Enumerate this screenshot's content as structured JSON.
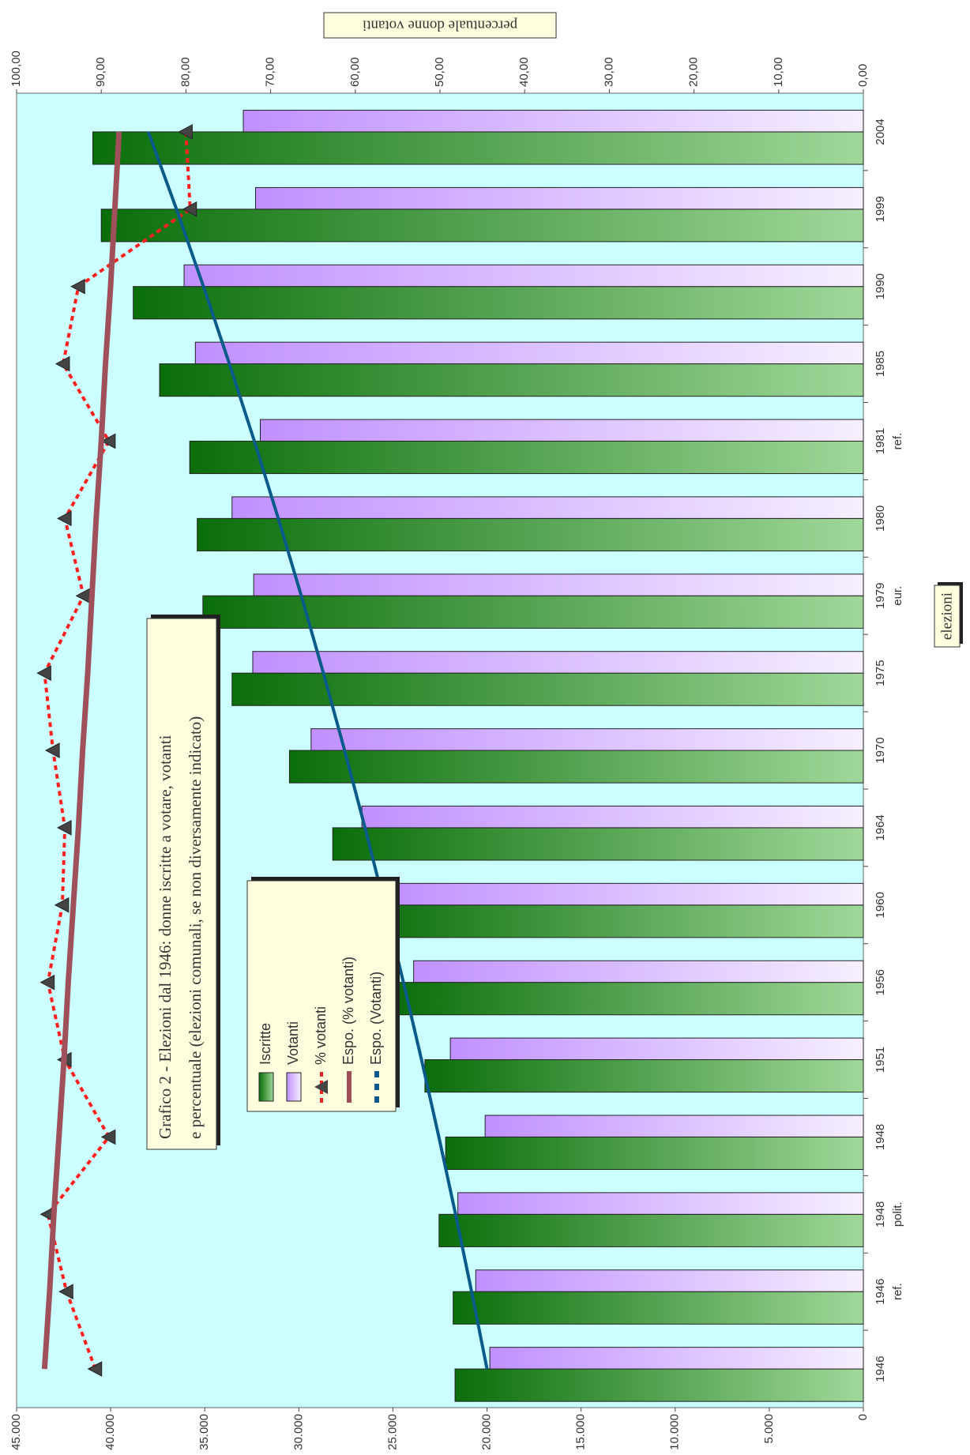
{
  "chart_data": {
    "type": "bar",
    "title": [
      "Grafico 2 - Elezioni dal 1946: donne iscritte a votare, votanti",
      "e percentuale (elezioni comunali, se non diversamente indicato)"
    ],
    "x_title": "elezioni",
    "y2_title": "percentuale donne votanti",
    "categories": [
      "1946",
      "1946",
      "1948",
      "1948",
      "1951",
      "1956",
      "1960",
      "1964",
      "1970",
      "1975",
      "1979",
      "1980",
      "1981",
      "1985",
      "1990",
      "1999",
      "2004"
    ],
    "category_notes": [
      null,
      "ref.",
      "polit.",
      null,
      null,
      null,
      null,
      null,
      null,
      null,
      "eur.",
      null,
      "ref.",
      null,
      null,
      null,
      null
    ],
    "background": "#ccffff",
    "series": [
      {
        "name": "Iscritte",
        "type": "bar",
        "color": "#0a6e0a",
        "gradient": [
          "#0a6e0a",
          "#a0d89a"
        ],
        "values": [
          21700,
          21800,
          22550,
          22200,
          23300,
          24800,
          26400,
          28200,
          30500,
          33550,
          35100,
          35400,
          35800,
          37400,
          38800,
          40500,
          40950
        ]
      },
      {
        "name": "Votanti",
        "type": "bar",
        "color": "#c090ff",
        "gradient": [
          "#c090ff",
          "#f6efff"
        ],
        "values": [
          19850,
          20600,
          21550,
          20100,
          21950,
          23900,
          25150,
          26650,
          29350,
          32450,
          32400,
          33550,
          32050,
          35500,
          36100,
          32300,
          32950
        ]
      },
      {
        "name": "% votanti",
        "type": "line",
        "axis": "y2",
        "color": "#ff2020",
        "dash": true,
        "marker": "triangle",
        "values": [
          90.7,
          94.1,
          96.3,
          89.1,
          94.3,
          96.3,
          94.6,
          94.3,
          95.7,
          96.7,
          92.1,
          94.3,
          89.1,
          94.5,
          92.7,
          79.5,
          80.0
        ]
      },
      {
        "name": "Espo. (% votanti)",
        "type": "line",
        "axis": "y2",
        "color": "#a0505a",
        "dash": false,
        "values": [
          96.7,
          96.1,
          95.6,
          95.0,
          94.4,
          93.9,
          93.3,
          92.7,
          92.2,
          91.6,
          91.1,
          90.6,
          90.0,
          89.5,
          88.9,
          88.4,
          87.9
        ]
      },
      {
        "name": "Espo. (Votanti)",
        "type": "line",
        "color": "#0a5a8a",
        "dash": false,
        "values": [
          20000,
          20819,
          21671,
          22558,
          23481,
          24442,
          25442,
          26484,
          27568,
          28696,
          29870,
          31093,
          32365,
          33690,
          35068,
          36503,
          37997
        ]
      }
    ],
    "ylim": [
      0,
      45000
    ],
    "yticks": [
      0,
      {
        "value": 5000,
        "label": "5.000"
      },
      {
        "value": 10000,
        "label": "10.000"
      },
      {
        "value": 15000,
        "label": "15.000"
      },
      {
        "value": 20000,
        "label": "20.000"
      },
      {
        "value": 25000,
        "label": "25.000"
      },
      {
        "value": 30000,
        "label": "30.000"
      },
      {
        "value": 35000,
        "label": "35.000"
      },
      {
        "value": 40000,
        "label": "40.000"
      },
      {
        "value": 45000,
        "label": "45.000"
      }
    ],
    "y2lim": [
      0,
      100
    ],
    "y2ticks": [
      {
        "value": 0,
        "label": "0,00"
      },
      {
        "value": 10,
        "label": "10,00"
      },
      {
        "value": 20,
        "label": "20,00"
      },
      {
        "value": 30,
        "label": "30,00"
      },
      {
        "value": 40,
        "label": "40,00"
      },
      {
        "value": 50,
        "label": "50,00"
      },
      {
        "value": 60,
        "label": "60,00"
      },
      {
        "value": 70,
        "label": "70,00"
      },
      {
        "value": 80,
        "label": "80,00"
      },
      {
        "value": 90,
        "label": "90,00"
      },
      {
        "value": 100,
        "label": "100,00"
      }
    ]
  }
}
